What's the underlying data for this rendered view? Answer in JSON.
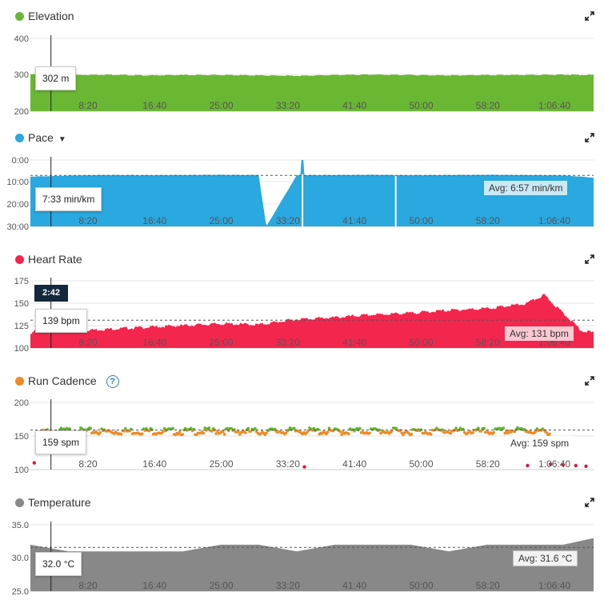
{
  "x_ticks": [
    "8:20",
    "16:40",
    "25:00",
    "33:20",
    "41:40",
    "50:00",
    "58:20",
    "1:06:40"
  ],
  "cursor_time": "2:42",
  "panels": [
    {
      "key": "elevation",
      "title": "Elevation",
      "color": "#6ab733",
      "y_ticks": [
        "400",
        "300",
        "200"
      ],
      "tooltip": "302 m",
      "avg": ""
    },
    {
      "key": "pace",
      "title": "Pace",
      "dropdown_icon": "caret-down-icon",
      "color": "#2aa8e0",
      "y_ticks": [
        "0:00",
        "10:00",
        "20:00",
        "30:00"
      ],
      "tooltip": "7:33 min/km",
      "avg": "Avg: 6:57 min/km"
    },
    {
      "key": "heart_rate",
      "title": "Heart Rate",
      "color": "#f3264e",
      "y_ticks": [
        "175",
        "150",
        "125",
        "100"
      ],
      "tooltip": "139 bpm",
      "avg": "Avg: 131 bpm"
    },
    {
      "key": "cadence",
      "title": "Run Cadence",
      "help_icon": "question-circle-icon",
      "color": "#f08a24",
      "color_high": "#5cb531",
      "color_low": "#e0153d",
      "y_ticks": [
        "200",
        "150",
        "100"
      ],
      "tooltip": "159 spm",
      "avg": "Avg: 159 spm"
    },
    {
      "key": "temperature",
      "title": "Temperature",
      "color": "#888888",
      "y_ticks": [
        "35.0",
        "30.0",
        "25.0"
      ],
      "tooltip": "32.0 °C",
      "avg": "Avg: 31.6 °C"
    }
  ],
  "chart_data": [
    {
      "type": "area",
      "title": "Elevation",
      "ylabel": "m",
      "ylim": [
        200,
        400
      ],
      "x_unit": "elapsed time (s)",
      "x_range": [
        0,
        4440
      ],
      "avg": null,
      "series": [
        {
          "name": "Elevation",
          "x": [
            0,
            300,
            600,
            900,
            1200,
            1500,
            1800,
            2100,
            2400,
            2700,
            3000,
            3300,
            3600,
            3900,
            4200,
            4440
          ],
          "y": [
            302,
            300,
            301,
            299,
            300,
            300,
            299,
            298,
            300,
            301,
            300,
            299,
            300,
            300,
            301,
            300
          ]
        }
      ]
    },
    {
      "type": "area",
      "title": "Pace",
      "ylabel": "min/km",
      "y_inverted": true,
      "ylim": [
        "30:00",
        "0:00"
      ],
      "x_unit": "elapsed time (s)",
      "x_range": [
        0,
        4440
      ],
      "avg": "6:57",
      "series": [
        {
          "name": "Pace",
          "x": [
            0,
            162,
            300,
            600,
            900,
            1200,
            1500,
            1800,
            1860,
            2100,
            2400,
            2700,
            3000,
            3300,
            3600,
            3900,
            4200,
            4440
          ],
          "y": [
            "7:33",
            "7:20",
            "7:05",
            "6:50",
            "6:55",
            "6:50",
            "6:45",
            "6:50",
            "30:00",
            "6:55",
            "6:50",
            "6:45",
            "6:55",
            "6:50",
            "6:45",
            "6:50",
            "7:00",
            "8:00"
          ]
        }
      ]
    },
    {
      "type": "area",
      "title": "Heart Rate",
      "ylabel": "bpm",
      "ylim": [
        100,
        175
      ],
      "x_unit": "elapsed time (s)",
      "x_range": [
        0,
        4440
      ],
      "avg": 131,
      "series": [
        {
          "name": "Heart Rate",
          "x": [
            0,
            162,
            300,
            600,
            900,
            1200,
            1500,
            1800,
            2100,
            2400,
            2700,
            3000,
            3300,
            3600,
            3900,
            4050,
            4200,
            4350,
            4440
          ],
          "y": [
            115,
            139,
            120,
            122,
            124,
            126,
            128,
            127,
            133,
            135,
            138,
            140,
            143,
            145,
            150,
            160,
            140,
            120,
            118
          ]
        }
      ]
    },
    {
      "type": "scatter",
      "title": "Run Cadence",
      "ylabel": "spm",
      "ylim": [
        100,
        200
      ],
      "x_unit": "elapsed time (s)",
      "x_range": [
        0,
        4440
      ],
      "avg": 159,
      "series": [
        {
          "name": "Run Cadence",
          "x": [
            0,
            162,
            300,
            600,
            900,
            1200,
            1500,
            1800,
            2100,
            2400,
            2700,
            3000,
            3300,
            3600,
            3900,
            4100
          ],
          "y": [
            158,
            159,
            160,
            159,
            160,
            159,
            160,
            159,
            160,
            159,
            160,
            159,
            160,
            159,
            161,
            158
          ]
        },
        {
          "name": "Low cadence",
          "x": [
            30,
            2160,
            3920,
            4100,
            4200,
            4300,
            4380
          ],
          "y": [
            110,
            104,
            106,
            108,
            107,
            106,
            105
          ]
        }
      ]
    },
    {
      "type": "area",
      "title": "Temperature",
      "ylabel": "°C",
      "ylim": [
        25,
        35
      ],
      "x_unit": "elapsed time (s)",
      "x_range": [
        0,
        4440
      ],
      "avg": 31.6,
      "series": [
        {
          "name": "Temperature",
          "x": [
            0,
            300,
            600,
            900,
            1200,
            1500,
            1800,
            2100,
            2400,
            2700,
            3000,
            3300,
            3600,
            3900,
            4200,
            4440
          ],
          "y": [
            32.0,
            31.0,
            31.0,
            31.0,
            31.0,
            32.0,
            32.0,
            31.0,
            32.0,
            32.0,
            32.0,
            31.0,
            32.0,
            32.0,
            32.0,
            33.0
          ]
        }
      ]
    }
  ]
}
